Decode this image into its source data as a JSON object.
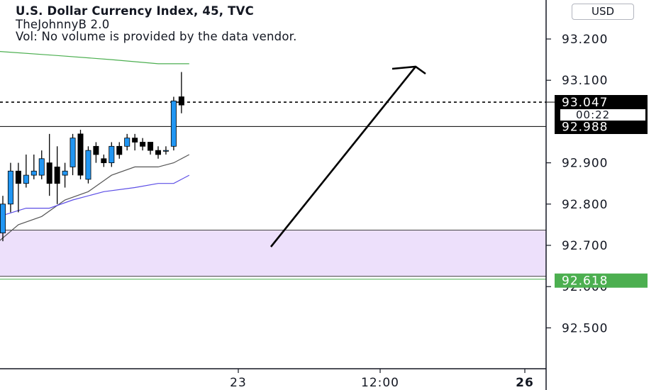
{
  "header": {
    "title": "U.S. Dollar Currency Index, 45, TVC",
    "indicator": "TheJohnnyB 2.0",
    "volume_note": "Vol: No volume is provided by the data vendor."
  },
  "currency_button": "USD",
  "colors": {
    "up": "#2196f3",
    "down": "#000000",
    "zone_fill": "#ede0fb",
    "green_label": "#4caf50",
    "ma_green": "#4caf50",
    "ma_gray": "#555555",
    "ma_blue": "#5c4ee6"
  },
  "price_labels": {
    "last": "93.047",
    "countdown": "00:22",
    "hline": "92.988",
    "green": "92.618"
  },
  "chart_data": {
    "type": "candlestick",
    "title": "U.S. Dollar Currency Index, 45, TVC",
    "y_axis": {
      "ylim": [
        92.41,
        93.25
      ],
      "ticks": [
        "93.200",
        "93.100",
        "92.900",
        "92.800",
        "92.700",
        "92.600",
        "92.500"
      ],
      "position": "right"
    },
    "x_axis": {
      "ticks": [
        "23",
        "12:00",
        "26"
      ]
    },
    "candles": [
      {
        "o": 92.73,
        "h": 92.82,
        "l": 92.71,
        "c": 92.8
      },
      {
        "o": 92.8,
        "h": 92.9,
        "l": 92.78,
        "c": 92.88
      },
      {
        "o": 92.88,
        "h": 92.9,
        "l": 92.78,
        "c": 92.85
      },
      {
        "o": 92.85,
        "h": 92.92,
        "l": 92.84,
        "c": 92.87
      },
      {
        "o": 92.87,
        "h": 92.92,
        "l": 92.86,
        "c": 92.88
      },
      {
        "o": 92.87,
        "h": 92.93,
        "l": 92.86,
        "c": 92.91
      },
      {
        "o": 92.9,
        "h": 92.97,
        "l": 92.82,
        "c": 92.85
      },
      {
        "o": 92.89,
        "h": 92.94,
        "l": 92.8,
        "c": 92.85
      },
      {
        "o": 92.87,
        "h": 92.9,
        "l": 92.84,
        "c": 92.88
      },
      {
        "o": 92.89,
        "h": 92.97,
        "l": 92.87,
        "c": 92.96
      },
      {
        "o": 92.97,
        "h": 92.98,
        "l": 92.86,
        "c": 92.87
      },
      {
        "o": 92.86,
        "h": 92.94,
        "l": 92.85,
        "c": 92.93
      },
      {
        "o": 92.94,
        "h": 92.95,
        "l": 92.9,
        "c": 92.92
      },
      {
        "o": 92.91,
        "h": 92.92,
        "l": 92.89,
        "c": 92.9
      },
      {
        "o": 92.9,
        "h": 92.95,
        "l": 92.89,
        "c": 92.94
      },
      {
        "o": 92.94,
        "h": 92.95,
        "l": 92.91,
        "c": 92.92
      },
      {
        "o": 92.94,
        "h": 92.97,
        "l": 92.93,
        "c": 92.96
      },
      {
        "o": 92.96,
        "h": 92.97,
        "l": 92.93,
        "c": 92.95
      },
      {
        "o": 92.95,
        "h": 92.96,
        "l": 92.93,
        "c": 92.94
      },
      {
        "o": 92.95,
        "h": 92.95,
        "l": 92.92,
        "c": 92.93
      },
      {
        "o": 92.93,
        "h": 92.94,
        "l": 92.91,
        "c": 92.92
      },
      {
        "o": 92.93,
        "h": 92.94,
        "l": 92.92,
        "c": 92.93
      },
      {
        "o": 92.94,
        "h": 93.06,
        "l": 92.93,
        "c": 93.05
      },
      {
        "o": 93.06,
        "h": 93.12,
        "l": 93.02,
        "c": 93.04
      }
    ],
    "moving_averages": [
      {
        "color": "green",
        "points": [
          [
            -0.5,
            93.17
          ],
          [
            7,
            93.16
          ],
          [
            14,
            93.15
          ],
          [
            20,
            93.14
          ],
          [
            24,
            93.14
          ]
        ]
      },
      {
        "color": "gray",
        "points": [
          [
            -0.5,
            92.71
          ],
          [
            2,
            92.75
          ],
          [
            5,
            92.77
          ],
          [
            8,
            92.81
          ],
          [
            11,
            92.83
          ],
          [
            14,
            92.87
          ],
          [
            17,
            92.89
          ],
          [
            20,
            92.89
          ],
          [
            22,
            92.9
          ],
          [
            24,
            92.92
          ]
        ]
      },
      {
        "color": "blue",
        "points": [
          [
            -0.5,
            92.77
          ],
          [
            3,
            92.79
          ],
          [
            6,
            92.79
          ],
          [
            9,
            92.81
          ],
          [
            13,
            92.83
          ],
          [
            17,
            92.84
          ],
          [
            20,
            92.85
          ],
          [
            22,
            92.85
          ],
          [
            24,
            92.87
          ]
        ]
      }
    ],
    "horizontal_lines": [
      {
        "price": 93.047,
        "style": "dotted"
      },
      {
        "price": 92.988,
        "style": "solid"
      }
    ],
    "zone": {
      "top": 92.737,
      "bottom": 92.625
    },
    "green_line": 92.618,
    "annotations": [
      {
        "type": "arrow",
        "from": [
          92.7,
          "near 23"
        ],
        "to": [
          93.12,
          "after 12:00"
        ]
      }
    ]
  }
}
